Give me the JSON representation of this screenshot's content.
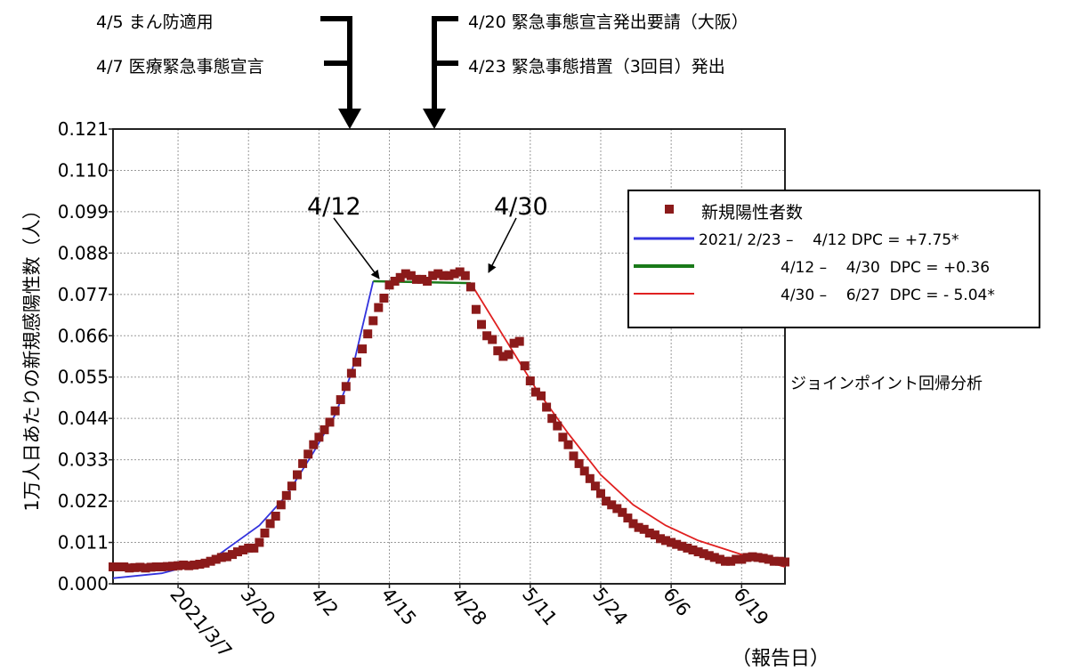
{
  "annotations": {
    "left_events": [
      "4/5  まん防適用",
      "4/7  医療緊急事態宣言"
    ],
    "right_events": [
      "4/20  緊急事態宣言発出要請（大阪）",
      "4/23  緊急事態措置（3回目）発出"
    ],
    "joinpoint_1": "4/12",
    "joinpoint_2": "4/30",
    "method_note": "ジョインポイント回帰分析",
    "x_axis_note": "（報告日）"
  },
  "chart_data": {
    "type": "scatter",
    "ylabel": "1万人日あたりの新規感陽性数（人）",
    "ylim": [
      0,
      0.121
    ],
    "yticks": [
      "0.000",
      "0.011",
      "0.022",
      "0.033",
      "0.044",
      "0.055",
      "0.066",
      "0.077",
      "0.088",
      "0.099",
      "0.110",
      "0.121"
    ],
    "xlim": [
      "2021/2/23",
      "2021/6/27"
    ],
    "xticks": [
      {
        "date": "2021/3/7",
        "label": "2021/3/7"
      },
      {
        "date": "2021/3/20",
        "label": "3/20"
      },
      {
        "date": "2021/4/2",
        "label": "4/2"
      },
      {
        "date": "2021/4/15",
        "label": "4/15"
      },
      {
        "date": "2021/4/28",
        "label": "4/28"
      },
      {
        "date": "2021/5/11",
        "label": "5/11"
      },
      {
        "date": "2021/5/24",
        "label": "5/24"
      },
      {
        "date": "2021/6/6",
        "label": "6/6"
      },
      {
        "date": "2021/6/19",
        "label": "6/19"
      }
    ],
    "grid": true,
    "legend_position": "top-right",
    "series": [
      {
        "name": "新規陽性者数",
        "kind": "points",
        "color": "#8b1a1a",
        "points": [
          [
            "2021/2/23",
            0.0045
          ],
          [
            "2021/2/24",
            0.0045
          ],
          [
            "2021/2/25",
            0.0045
          ],
          [
            "2021/2/26",
            0.0042
          ],
          [
            "2021/2/27",
            0.0043
          ],
          [
            "2021/2/28",
            0.0044
          ],
          [
            "2021/3/1",
            0.0042
          ],
          [
            "2021/3/2",
            0.0044
          ],
          [
            "2021/3/3",
            0.0045
          ],
          [
            "2021/3/4",
            0.0045
          ],
          [
            "2021/3/5",
            0.0046
          ],
          [
            "2021/3/6",
            0.0047
          ],
          [
            "2021/3/7",
            0.0048
          ],
          [
            "2021/3/8",
            0.005
          ],
          [
            "2021/3/9",
            0.0048
          ],
          [
            "2021/3/10",
            0.005
          ],
          [
            "2021/3/11",
            0.0052
          ],
          [
            "2021/3/12",
            0.0055
          ],
          [
            "2021/3/13",
            0.006
          ],
          [
            "2021/3/14",
            0.0065
          ],
          [
            "2021/3/15",
            0.007
          ],
          [
            "2021/3/16",
            0.0072
          ],
          [
            "2021/3/17",
            0.0078
          ],
          [
            "2021/3/18",
            0.0085
          ],
          [
            "2021/3/19",
            0.009
          ],
          [
            "2021/3/20",
            0.0095
          ],
          [
            "2021/3/21",
            0.0095
          ],
          [
            "2021/3/22",
            0.011
          ],
          [
            "2021/3/23",
            0.0135
          ],
          [
            "2021/3/24",
            0.016
          ],
          [
            "2021/3/25",
            0.018
          ],
          [
            "2021/3/26",
            0.021
          ],
          [
            "2021/3/27",
            0.0235
          ],
          [
            "2021/3/28",
            0.026
          ],
          [
            "2021/3/29",
            0.029
          ],
          [
            "2021/3/30",
            0.032
          ],
          [
            "2021/3/31",
            0.0345
          ],
          [
            "2021/4/1",
            0.037
          ],
          [
            "2021/4/2",
            0.039
          ],
          [
            "2021/4/3",
            0.041
          ],
          [
            "2021/4/4",
            0.043
          ],
          [
            "2021/4/5",
            0.046
          ],
          [
            "2021/4/6",
            0.049
          ],
          [
            "2021/4/7",
            0.0525
          ],
          [
            "2021/4/8",
            0.056
          ],
          [
            "2021/4/9",
            0.059
          ],
          [
            "2021/4/10",
            0.0625
          ],
          [
            "2021/4/11",
            0.0665
          ],
          [
            "2021/4/12",
            0.07
          ],
          [
            "2021/4/13",
            0.0735
          ],
          [
            "2021/4/14",
            0.076
          ],
          [
            "2021/4/15",
            0.0795
          ],
          [
            "2021/4/16",
            0.0805
          ],
          [
            "2021/4/17",
            0.0815
          ],
          [
            "2021/4/18",
            0.0825
          ],
          [
            "2021/4/19",
            0.082
          ],
          [
            "2021/4/20",
            0.081
          ],
          [
            "2021/4/21",
            0.081
          ],
          [
            "2021/4/22",
            0.0805
          ],
          [
            "2021/4/23",
            0.082
          ],
          [
            "2021/4/24",
            0.0825
          ],
          [
            "2021/4/25",
            0.082
          ],
          [
            "2021/4/26",
            0.082
          ],
          [
            "2021/4/27",
            0.0825
          ],
          [
            "2021/4/28",
            0.083
          ],
          [
            "2021/4/29",
            0.082
          ],
          [
            "2021/4/30",
            0.079
          ],
          [
            "2021/5/1",
            0.073
          ],
          [
            "2021/5/2",
            0.069
          ],
          [
            "2021/5/3",
            0.066
          ],
          [
            "2021/5/4",
            0.065
          ],
          [
            "2021/5/5",
            0.062
          ],
          [
            "2021/5/6",
            0.0605
          ],
          [
            "2021/5/7",
            0.061
          ],
          [
            "2021/5/8",
            0.064
          ],
          [
            "2021/5/9",
            0.0645
          ],
          [
            "2021/5/10",
            0.058
          ],
          [
            "2021/5/11",
            0.054
          ],
          [
            "2021/5/12",
            0.051
          ],
          [
            "2021/5/13",
            0.05
          ],
          [
            "2021/5/14",
            0.047
          ],
          [
            "2021/5/15",
            0.044
          ],
          [
            "2021/5/16",
            0.042
          ],
          [
            "2021/5/17",
            0.039
          ],
          [
            "2021/5/18",
            0.037
          ],
          [
            "2021/5/19",
            0.034
          ],
          [
            "2021/5/20",
            0.032
          ],
          [
            "2021/5/21",
            0.03
          ],
          [
            "2021/5/22",
            0.028
          ],
          [
            "2021/5/23",
            0.026
          ],
          [
            "2021/5/24",
            0.024
          ],
          [
            "2021/5/25",
            0.022
          ],
          [
            "2021/5/26",
            0.021
          ],
          [
            "2021/5/27",
            0.02
          ],
          [
            "2021/5/28",
            0.019
          ],
          [
            "2021/5/29",
            0.0175
          ],
          [
            "2021/5/30",
            0.016
          ],
          [
            "2021/5/31",
            0.015
          ],
          [
            "2021/6/1",
            0.0145
          ],
          [
            "2021/6/2",
            0.0135
          ],
          [
            "2021/6/3",
            0.013
          ],
          [
            "2021/6/4",
            0.012
          ],
          [
            "2021/6/5",
            0.0115
          ],
          [
            "2021/6/6",
            0.011
          ],
          [
            "2021/6/7",
            0.0105
          ],
          [
            "2021/6/8",
            0.01
          ],
          [
            "2021/6/9",
            0.0095
          ],
          [
            "2021/6/10",
            0.009
          ],
          [
            "2021/6/11",
            0.0085
          ],
          [
            "2021/6/12",
            0.008
          ],
          [
            "2021/6/13",
            0.0075
          ],
          [
            "2021/6/14",
            0.007
          ],
          [
            "2021/6/15",
            0.0065
          ],
          [
            "2021/6/16",
            0.006
          ],
          [
            "2021/6/17",
            0.006
          ],
          [
            "2021/6/18",
            0.0065
          ],
          [
            "2021/6/19",
            0.0065
          ],
          [
            "2021/6/20",
            0.007
          ],
          [
            "2021/6/21",
            0.0072
          ],
          [
            "2021/6/22",
            0.007
          ],
          [
            "2021/6/23",
            0.0068
          ],
          [
            "2021/6/24",
            0.0065
          ],
          [
            "2021/6/25",
            0.006
          ],
          [
            "2021/6/26",
            0.006
          ],
          [
            "2021/6/27",
            0.0058
          ]
        ]
      },
      {
        "name": "2021/ 2/23 –    4/12 DPC = +7.75*",
        "kind": "fit",
        "color": "#3333dd",
        "points": [
          [
            "2021/2/23",
            0.0015
          ],
          [
            "2021/3/4",
            0.0028
          ],
          [
            "2021/3/13",
            0.0062
          ],
          [
            "2021/3/22",
            0.0155
          ],
          [
            "2021/3/27",
            0.0235
          ],
          [
            "2021/4/1",
            0.035
          ],
          [
            "2021/4/5",
            0.045
          ],
          [
            "2021/4/8",
            0.056
          ],
          [
            "2021/4/12",
            0.0805
          ]
        ]
      },
      {
        "name": "4/12 –    4/30  DPC = +0.36",
        "kind": "fit",
        "color": "#1a7a1a",
        "points": [
          [
            "2021/4/12",
            0.0805
          ],
          [
            "2021/4/30",
            0.08
          ]
        ]
      },
      {
        "name": "4/30 –    6/27  DPC = - 5.04*",
        "kind": "fit",
        "color": "#e02020",
        "points": [
          [
            "2021/4/30",
            0.08
          ],
          [
            "2021/5/6",
            0.066
          ],
          [
            "2021/5/12",
            0.052
          ],
          [
            "2021/5/18",
            0.04
          ],
          [
            "2021/5/24",
            0.029
          ],
          [
            "2021/5/30",
            0.021
          ],
          [
            "2021/6/5",
            0.0155
          ],
          [
            "2021/6/11",
            0.0115
          ],
          [
            "2021/6/19",
            0.0078
          ],
          [
            "2021/6/27",
            0.0045
          ]
        ]
      }
    ]
  }
}
